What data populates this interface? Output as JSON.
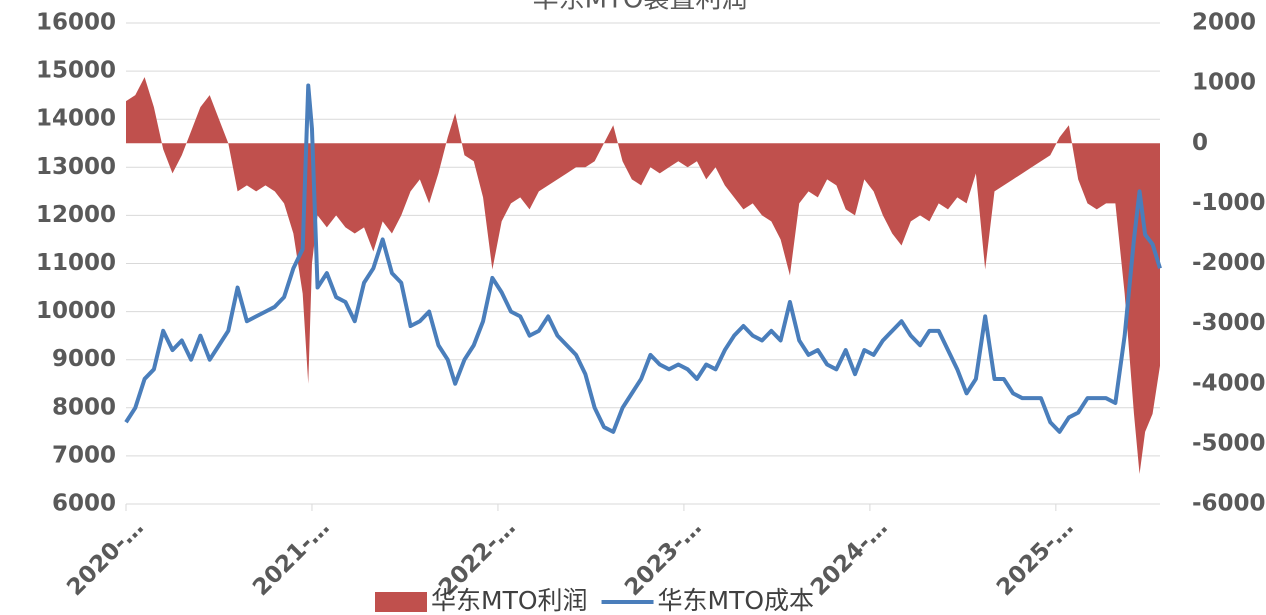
{
  "chart_data": {
    "type": "combo",
    "title": "华东MTO装置利润",
    "x": [
      2020.0,
      2020.05,
      2020.1,
      2020.15,
      2020.2,
      2020.25,
      2020.3,
      2020.35,
      2020.4,
      2020.45,
      2020.5,
      2020.55,
      2020.6,
      2020.65,
      2020.7,
      2020.75,
      2020.8,
      2020.85,
      2020.9,
      2020.95,
      2020.98,
      2021.0,
      2021.03,
      2021.08,
      2021.13,
      2021.18,
      2021.23,
      2021.28,
      2021.33,
      2021.38,
      2021.43,
      2021.48,
      2021.53,
      2021.58,
      2021.63,
      2021.68,
      2021.73,
      2021.77,
      2021.82,
      2021.87,
      2021.92,
      2021.97,
      2022.02,
      2022.07,
      2022.12,
      2022.17,
      2022.22,
      2022.27,
      2022.32,
      2022.37,
      2022.42,
      2022.47,
      2022.52,
      2022.57,
      2022.62,
      2022.67,
      2022.72,
      2022.77,
      2022.82,
      2022.87,
      2022.92,
      2022.97,
      2023.02,
      2023.07,
      2023.12,
      2023.17,
      2023.22,
      2023.27,
      2023.32,
      2023.37,
      2023.42,
      2023.47,
      2023.52,
      2023.57,
      2023.62,
      2023.67,
      2023.72,
      2023.77,
      2023.82,
      2023.87,
      2023.92,
      2023.97,
      2024.02,
      2024.07,
      2024.12,
      2024.17,
      2024.22,
      2024.27,
      2024.32,
      2024.37,
      2024.42,
      2024.47,
      2024.52,
      2024.57,
      2024.62,
      2024.67,
      2024.72,
      2024.77,
      2024.82,
      2024.87,
      2024.92,
      2024.97,
      2025.02,
      2025.07,
      2025.12,
      2025.17,
      2025.22,
      2025.27,
      2025.32,
      2025.37,
      2025.42,
      2025.45,
      2025.48,
      2025.52,
      2025.56
    ],
    "series": [
      {
        "name": "华东MTO利润",
        "color": "#c0504d",
        "kind": "area",
        "axis": "y2",
        "values": [
          700,
          800,
          1100,
          600,
          -100,
          -500,
          -200,
          200,
          600,
          800,
          400,
          0,
          -800,
          -700,
          -800,
          -700,
          -800,
          -1000,
          -1500,
          -2500,
          -4000,
          -2000,
          -1200,
          -1400,
          -1200,
          -1400,
          -1500,
          -1400,
          -1800,
          -1300,
          -1500,
          -1200,
          -800,
          -600,
          -1000,
          -500,
          100,
          500,
          -200,
          -300,
          -900,
          -2100,
          -1300,
          -1000,
          -900,
          -1100,
          -800,
          -700,
          -600,
          -500,
          -400,
          -400,
          -300,
          0,
          300,
          -300,
          -600,
          -700,
          -400,
          -500,
          -400,
          -300,
          -400,
          -300,
          -600,
          -400,
          -700,
          -900,
          -1100,
          -1000,
          -1200,
          -1300,
          -1600,
          -2200,
          -1000,
          -800,
          -900,
          -600,
          -700,
          -1100,
          -1200,
          -600,
          -800,
          -1200,
          -1500,
          -1700,
          -1300,
          -1200,
          -1300,
          -1000,
          -1100,
          -900,
          -1000,
          -500,
          -2100,
          -800,
          -700,
          -600,
          -500,
          -400,
          -300,
          -200,
          100,
          300,
          -600,
          -1000,
          -1100,
          -1000,
          -1000,
          -2500,
          -4500,
          -5500,
          -4800,
          -4500,
          -3700
        ]
      },
      {
        "name": "华东MTO成本",
        "color": "#4a7ebb",
        "kind": "line",
        "values": [
          7700,
          8000,
          8600,
          8800,
          9600,
          9200,
          9400,
          9000,
          9500,
          9000,
          9300,
          9600,
          10500,
          9800,
          9900,
          10000,
          10100,
          10300,
          10900,
          11300,
          14700,
          13800,
          10500,
          10800,
          10300,
          10200,
          9800,
          10600,
          10900,
          11500,
          10800,
          10600,
          9700,
          9800,
          10000,
          9300,
          9000,
          8500,
          9000,
          9300,
          9800,
          10700,
          10400,
          10000,
          9900,
          9500,
          9600,
          9900,
          9500,
          9300,
          9100,
          8700,
          8000,
          7600,
          7500,
          8000,
          8300,
          8600,
          9100,
          8900,
          8800,
          8900,
          8800,
          8600,
          8900,
          8800,
          9200,
          9500,
          9700,
          9500,
          9400,
          9600,
          9400,
          10200,
          9400,
          9100,
          9200,
          8900,
          8800,
          9200,
          8700,
          9200,
          9100,
          9400,
          9600,
          9800,
          9500,
          9300,
          9600,
          9600,
          9200,
          8800,
          8300,
          8600,
          9900,
          8600,
          8600,
          8300,
          8200,
          8200,
          8200,
          7700,
          7500,
          7800,
          7900,
          8200,
          8200,
          8200,
          8100,
          9500,
          11500,
          12500,
          11600,
          11400,
          10900
        ]
      }
    ],
    "xlim": [
      2020,
      2025.56
    ],
    "xticks": [
      {
        "value": 2020,
        "label": "2020-…"
      },
      {
        "value": 2021,
        "label": "2021-…"
      },
      {
        "value": 2022,
        "label": "2022-…"
      },
      {
        "value": 2023,
        "label": "2023-…"
      },
      {
        "value": 2024,
        "label": "2024-…"
      },
      {
        "value": 2025,
        "label": "2025-…"
      }
    ],
    "ylim": [
      6000,
      16000
    ],
    "yticks": [
      6000,
      7000,
      8000,
      9000,
      10000,
      11000,
      12000,
      13000,
      14000,
      15000,
      16000
    ],
    "y2lim": [
      -6000,
      2000
    ],
    "y2ticks": [
      -6000,
      -5000,
      -4000,
      -3000,
      -2000,
      -1000,
      0,
      1000,
      2000
    ],
    "grid": true,
    "legend": "bottom"
  }
}
